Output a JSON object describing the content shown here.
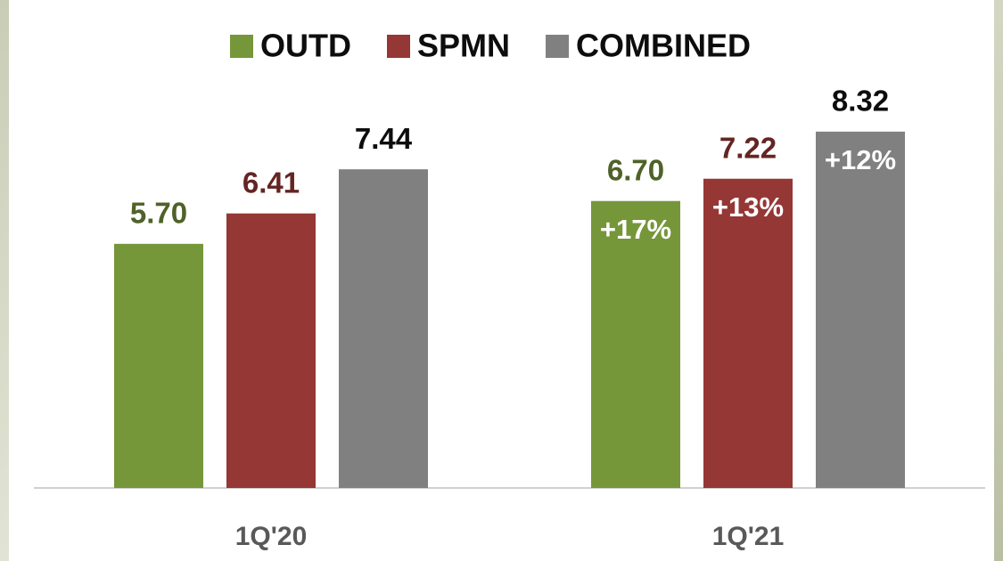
{
  "chart_data": {
    "type": "bar",
    "categories": [
      "1Q'20",
      "1Q'21"
    ],
    "series": [
      {
        "name": "OUTD",
        "color": "#76963a",
        "label_color": "#4f6228",
        "values": [
          5.7,
          6.7
        ],
        "value_labels": [
          "5.70",
          "6.70"
        ],
        "annotations": [
          null,
          "+17%"
        ]
      },
      {
        "name": "SPMN",
        "color": "#953735",
        "label_color": "#632523",
        "values": [
          6.41,
          7.22
        ],
        "value_labels": [
          "6.41",
          "7.22"
        ],
        "annotations": [
          null,
          "+13%"
        ]
      },
      {
        "name": "COMBINED",
        "color": "#808080",
        "label_color": "#0d0d0d",
        "values": [
          7.44,
          8.32
        ],
        "value_labels": [
          "7.44",
          "8.32"
        ],
        "annotations": [
          null,
          "+12%"
        ]
      }
    ],
    "ylim": [
      0,
      10
    ]
  }
}
